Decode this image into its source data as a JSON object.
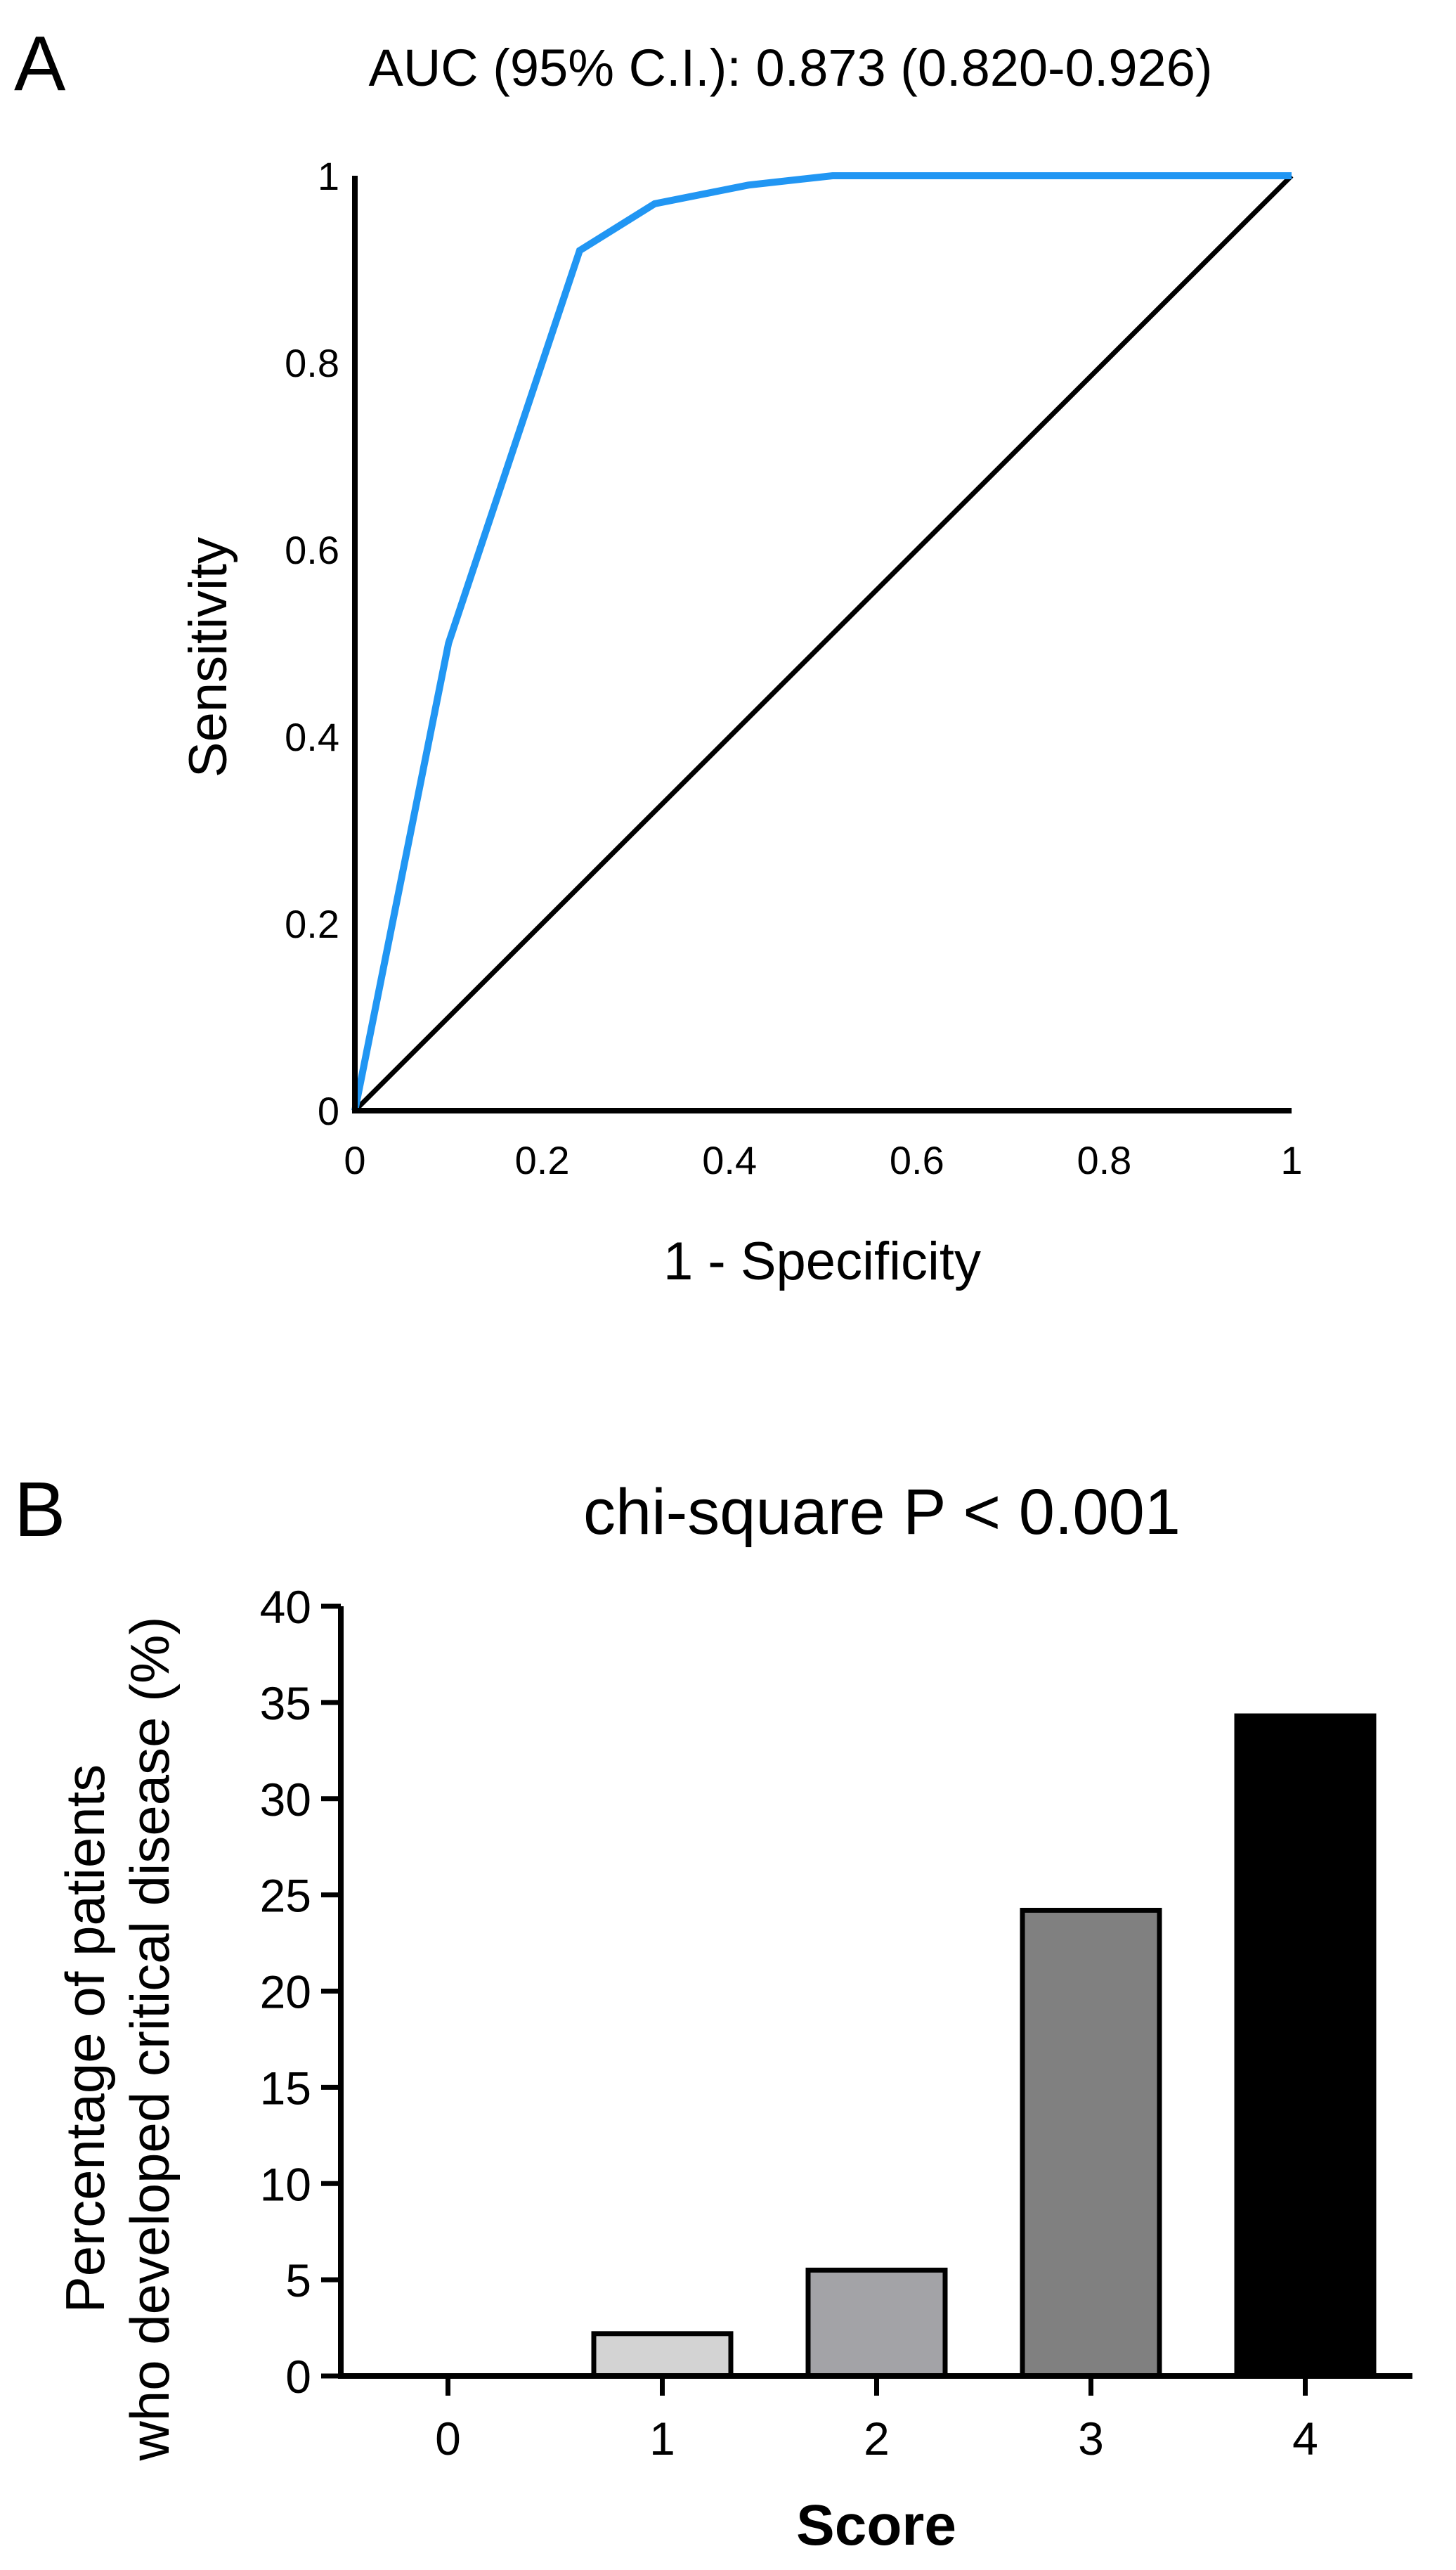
{
  "chart_data": [
    {
      "panel_label": "A",
      "type": "line",
      "title": "AUC (95% C.I.): 0.873 (0.820-0.926)",
      "xlabel": "1 - Specificity",
      "ylabel": "Sensitivity",
      "xlim": [
        0,
        1
      ],
      "ylim": [
        0,
        1
      ],
      "xticks": [
        "0",
        "0.2",
        "0.4",
        "0.6",
        "0.8",
        "1"
      ],
      "yticks": [
        "0",
        "0.2",
        "0.4",
        "0.6",
        "0.8",
        "1"
      ],
      "grid": false,
      "series": [
        {
          "color": "#2196F3",
          "x": [
            0,
            0.1,
            0.24,
            0.32,
            0.42,
            0.51,
            1
          ],
          "y": [
            0,
            0.5,
            0.92,
            0.97,
            0.99,
            1,
            1
          ]
        },
        {
          "color": "#000000",
          "x": [
            0,
            1
          ],
          "y": [
            0,
            1
          ]
        }
      ]
    },
    {
      "panel_label": "B",
      "type": "bar",
      "title": "chi-square P < 0.001",
      "xlabel": "Score",
      "ylabel": "Percentage of patients\nwho developed critical disease (%)",
      "categories": [
        "0",
        "1",
        "2",
        "3",
        "4"
      ],
      "values": [
        0,
        2.2,
        5.5,
        24.2,
        34.3
      ],
      "colors": [
        "#ffffff",
        "#d3d3d3",
        "#a3a3a7",
        "#808080",
        "#000000"
      ],
      "ylim": [
        0,
        40
      ],
      "yticks": [
        "0",
        "5",
        "10",
        "15",
        "20",
        "25",
        "30",
        "35",
        "40"
      ],
      "grid": false
    }
  ]
}
